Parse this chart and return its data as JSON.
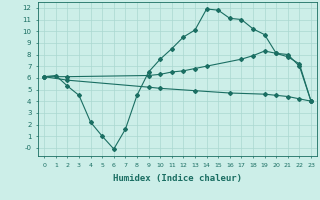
{
  "xlabel": "Humidex (Indice chaleur)",
  "bg_color": "#cceee8",
  "grid_color": "#aad8d0",
  "line_color": "#1a6e62",
  "xlim": [
    -0.5,
    23.5
  ],
  "ylim": [
    -0.7,
    12.5
  ],
  "yticks": [
    0,
    1,
    2,
    3,
    4,
    5,
    6,
    7,
    8,
    9,
    10,
    11,
    12
  ],
  "ytick_labels": [
    "-0",
    "1",
    "2",
    "3",
    "4",
    "5",
    "6",
    "7",
    "8",
    "9",
    "10",
    "11",
    "12"
  ],
  "xticks": [
    0,
    1,
    2,
    3,
    4,
    5,
    6,
    7,
    8,
    9,
    10,
    11,
    12,
    13,
    14,
    15,
    16,
    17,
    18,
    19,
    20,
    21,
    22,
    23
  ],
  "line1_x": [
    0,
    1,
    2,
    3,
    4,
    5,
    6,
    7,
    8,
    9,
    10,
    11,
    12,
    13,
    14,
    15,
    16,
    17,
    18,
    19,
    20,
    21,
    22,
    23
  ],
  "line1_y": [
    6.1,
    6.2,
    5.3,
    4.5,
    2.2,
    1.0,
    -0.1,
    1.6,
    4.5,
    6.5,
    7.6,
    8.5,
    9.5,
    10.1,
    11.9,
    11.8,
    11.1,
    11.0,
    10.2,
    9.7,
    8.1,
    8.0,
    7.0,
    4.0
  ],
  "line2_x": [
    0,
    2,
    9,
    10,
    11,
    12,
    13,
    14,
    17,
    18,
    19,
    20,
    21,
    22,
    23
  ],
  "line2_y": [
    6.1,
    6.1,
    6.2,
    6.3,
    6.5,
    6.6,
    6.8,
    7.0,
    7.6,
    7.9,
    8.3,
    8.1,
    7.8,
    7.2,
    4.0
  ],
  "line3_x": [
    0,
    2,
    9,
    10,
    13,
    16,
    19,
    20,
    21,
    22,
    23
  ],
  "line3_y": [
    6.1,
    5.8,
    5.2,
    5.1,
    4.9,
    4.7,
    4.6,
    4.5,
    4.4,
    4.2,
    4.0
  ]
}
